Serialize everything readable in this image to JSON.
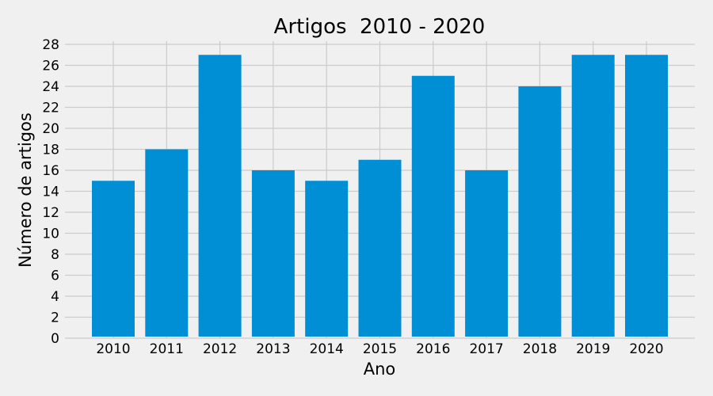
{
  "chart_data": {
    "type": "bar",
    "title": "Artigos  2010 - 2020",
    "xlabel": "Ano",
    "ylabel": "Número de artigos",
    "categories": [
      "2010",
      "2011",
      "2012",
      "2013",
      "2014",
      "2015",
      "2016",
      "2017",
      "2018",
      "2019",
      "2020"
    ],
    "values": [
      15,
      18,
      27,
      16,
      15,
      17,
      25,
      16,
      24,
      27,
      27
    ],
    "ylim": [
      0,
      28
    ],
    "yticks": [
      0,
      2,
      4,
      6,
      8,
      10,
      12,
      14,
      16,
      18,
      20,
      22,
      24,
      26,
      28
    ],
    "grid": true,
    "legend": "none",
    "colors": {
      "bar": "#008fd5",
      "background": "#f0f0f0",
      "grid": "#cbcbcb"
    }
  }
}
